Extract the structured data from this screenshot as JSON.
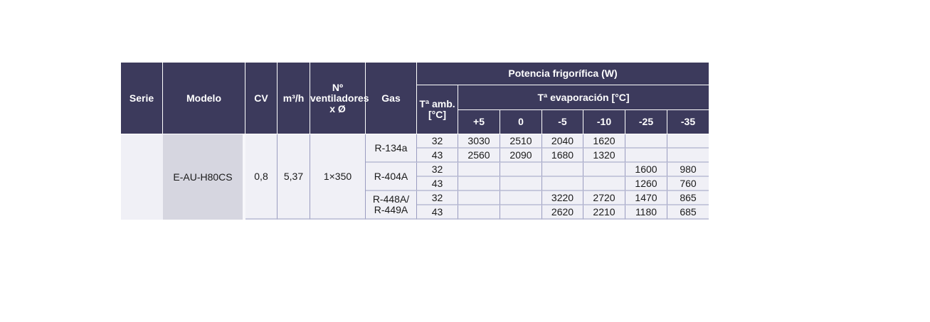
{
  "header": {
    "serie": "Serie",
    "modelo": "Modelo",
    "cv": "CV",
    "m3h": "m³/h",
    "ventiladores_line1": "Nº",
    "ventiladores_line2": "ventiladores",
    "ventiladores_line3": "x Ø",
    "gas": "Gas",
    "potencia": "Potencia frigorífica (W)",
    "tamb_line1": "Tª amb.",
    "tamb_line2": "[°C]",
    "tevap": "Tª evaporación [°C]",
    "evap_temps": [
      "+5",
      "0",
      "-5",
      "-10",
      "-25",
      "-35"
    ]
  },
  "product": {
    "serie": "",
    "modelo": "E-AU-H80CS",
    "cv": "0,8",
    "m3h": "5,37",
    "ventiladores": "1×350"
  },
  "gases": [
    {
      "name_line1": "R-134a",
      "name_line2": ""
    },
    {
      "name_line1": "R-404A",
      "name_line2": ""
    },
    {
      "name_line1": "R-448A/",
      "name_line2": "R-449A"
    }
  ],
  "rows": [
    {
      "tamb": "32",
      "values": [
        "3030",
        "2510",
        "2040",
        "1620",
        "",
        ""
      ]
    },
    {
      "tamb": "43",
      "values": [
        "2560",
        "2090",
        "1680",
        "1320",
        "",
        ""
      ]
    },
    {
      "tamb": "32",
      "values": [
        "",
        "",
        "",
        "",
        "1600",
        "980"
      ]
    },
    {
      "tamb": "43",
      "values": [
        "",
        "",
        "",
        "",
        "1260",
        "760"
      ]
    },
    {
      "tamb": "32",
      "values": [
        "",
        "",
        "3220",
        "2720",
        "1470",
        "865"
      ]
    },
    {
      "tamb": "43",
      "values": [
        "",
        "",
        "2620",
        "2210",
        "1180",
        "685"
      ]
    }
  ],
  "colors": {
    "header_bg": "#3c3a5c",
    "row_bg": "#f0f0f6",
    "model_bg": "#d6d6e0"
  }
}
